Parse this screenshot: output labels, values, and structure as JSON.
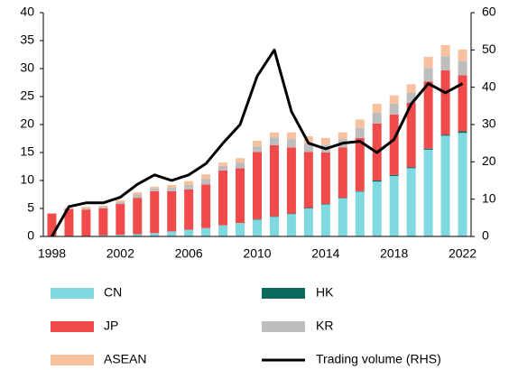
{
  "chart_data": {
    "type": "bar",
    "stacked": true,
    "categories": [
      "1998",
      null,
      null,
      null,
      "2002",
      null,
      null,
      null,
      "2006",
      null,
      null,
      null,
      "2010",
      null,
      null,
      null,
      "2014",
      null,
      null,
      null,
      "2018",
      null,
      null,
      null,
      "2022"
    ],
    "series": [
      {
        "name": "CN",
        "color": "#80d8e0",
        "values": [
          0.1,
          0.1,
          0.1,
          0.2,
          0.3,
          0.4,
          0.6,
          0.9,
          1.2,
          1.5,
          2.0,
          2.4,
          3.0,
          3.5,
          4.0,
          5.0,
          5.7,
          6.8,
          8.0,
          9.8,
          10.8,
          12.2,
          15.5,
          18.0,
          18.5
        ]
      },
      {
        "name": "HK",
        "color": "#0b6b5f",
        "values": [
          0,
          0,
          0,
          0,
          0,
          0,
          0,
          0,
          0,
          0,
          0,
          0,
          0.1,
          0.1,
          0.1,
          0.1,
          0.1,
          0.1,
          0.1,
          0.2,
          0.2,
          0.2,
          0.2,
          0.2,
          0.3
        ]
      },
      {
        "name": "JP",
        "color": "#f04a4a",
        "values": [
          4.0,
          4.8,
          4.7,
          4.8,
          5.5,
          6.5,
          7.5,
          7.2,
          7.2,
          7.8,
          9.8,
          9.8,
          12.0,
          12.7,
          11.8,
          10.0,
          9.2,
          9.0,
          9.5,
          10.2,
          10.8,
          11.5,
          12.0,
          11.5,
          10.0
        ]
      },
      {
        "name": "KR",
        "color": "#bdbdbd",
        "values": [
          0,
          0.1,
          0.2,
          0.3,
          0.4,
          0.6,
          0.5,
          0.6,
          0.8,
          1.0,
          0.8,
          1.0,
          1.0,
          1.4,
          1.5,
          1.5,
          1.4,
          1.5,
          1.8,
          1.9,
          1.9,
          1.8,
          2.4,
          2.5,
          2.6
        ]
      },
      {
        "name": "ASEAN",
        "color": "#f7c1a0",
        "values": [
          0,
          0.1,
          0.3,
          0.2,
          0.3,
          0.4,
          0.3,
          0.5,
          0.7,
          0.8,
          0.6,
          0.8,
          1.0,
          0.9,
          1.2,
          1.3,
          1.2,
          1.2,
          1.5,
          1.6,
          1.5,
          1.5,
          2.0,
          2.0,
          2.0
        ]
      },
      {
        "name": "Trading volume (RHS)",
        "color": "#000000",
        "type": "line",
        "axis": "y2",
        "values": [
          0,
          8,
          9,
          9,
          10.5,
          14,
          16.5,
          15,
          16.5,
          19.5,
          25,
          30,
          43,
          50,
          33.5,
          25,
          23.5,
          25,
          25.5,
          22.5,
          26,
          35.5,
          41,
          38.5,
          41
        ]
      }
    ],
    "ylim": [
      0,
      40
    ],
    "yticks": [
      0,
      5,
      10,
      15,
      20,
      25,
      30,
      35,
      40
    ],
    "y2lim": [
      0,
      60
    ],
    "y2ticks": [
      0,
      10,
      20,
      30,
      40,
      50,
      60
    ],
    "grid": false
  }
}
